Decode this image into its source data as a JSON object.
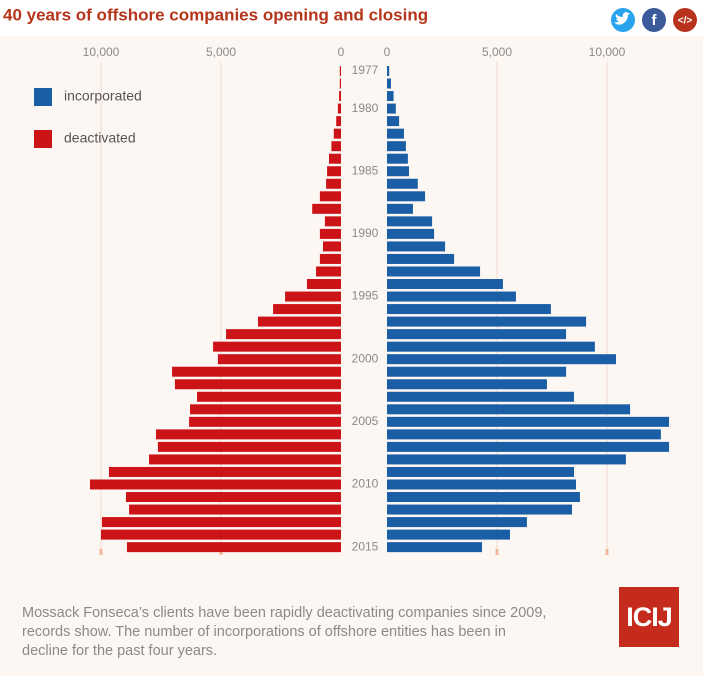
{
  "chart_data": {
    "type": "butterfly",
    "title": "40 years of offshore companies opening and closing",
    "caption": "Mossack Fonseca’s clients have been rapidly deactivating companies since 2009, records show. The number of incorporations of offshore entities has been in decline for the past four years.",
    "logo": "ICIJ",
    "categories": [
      "1977",
      null,
      null,
      "1980",
      null,
      null,
      null,
      null,
      "1985",
      null,
      null,
      null,
      null,
      "1990",
      null,
      null,
      null,
      null,
      "1995",
      null,
      null,
      null,
      null,
      "2000",
      null,
      null,
      null,
      null,
      "2005",
      null,
      null,
      null,
      null,
      "2010",
      null,
      null,
      null,
      null,
      "2015"
    ],
    "grid": true,
    "legend": "top-left",
    "series": [
      {
        "name": "incorporated",
        "color": "#1a5fa5",
        "side": "right",
        "xlim": [
          0,
          13000
        ],
        "xticks": [
          0,
          {
            "value": 5000,
            "label": "5,000"
          },
          {
            "value": 10000,
            "label": "10,000"
          }
        ],
        "values": [
          100,
          180,
          300,
          400,
          550,
          770,
          860,
          950,
          1000,
          1400,
          1730,
          1180,
          2050,
          2140,
          2640,
          3050,
          4230,
          5270,
          5860,
          7450,
          9050,
          8140,
          9450,
          10410,
          8140,
          7270,
          8500,
          11050,
          12820,
          12450,
          12820,
          10860,
          8500,
          8590,
          8770,
          8410,
          6360,
          5590,
          4320
        ]
      },
      {
        "name": "deactivated",
        "color": "#cc1418",
        "side": "left",
        "xlim": [
          0,
          12000
        ],
        "xticks": [
          {
            "value": 10000,
            "label": "10,000"
          },
          {
            "value": 5000,
            "label": "5,000"
          },
          0
        ],
        "values": [
          50,
          50,
          80,
          130,
          200,
          300,
          400,
          500,
          580,
          620,
          880,
          1200,
          670,
          880,
          750,
          880,
          1040,
          1420,
          2330,
          2830,
          3460,
          4790,
          5330,
          5130,
          7040,
          6920,
          6000,
          6290,
          6330,
          7710,
          7630,
          8000,
          9670,
          10460,
          8960,
          8830,
          9960,
          10000,
          8920
        ]
      }
    ]
  }
}
